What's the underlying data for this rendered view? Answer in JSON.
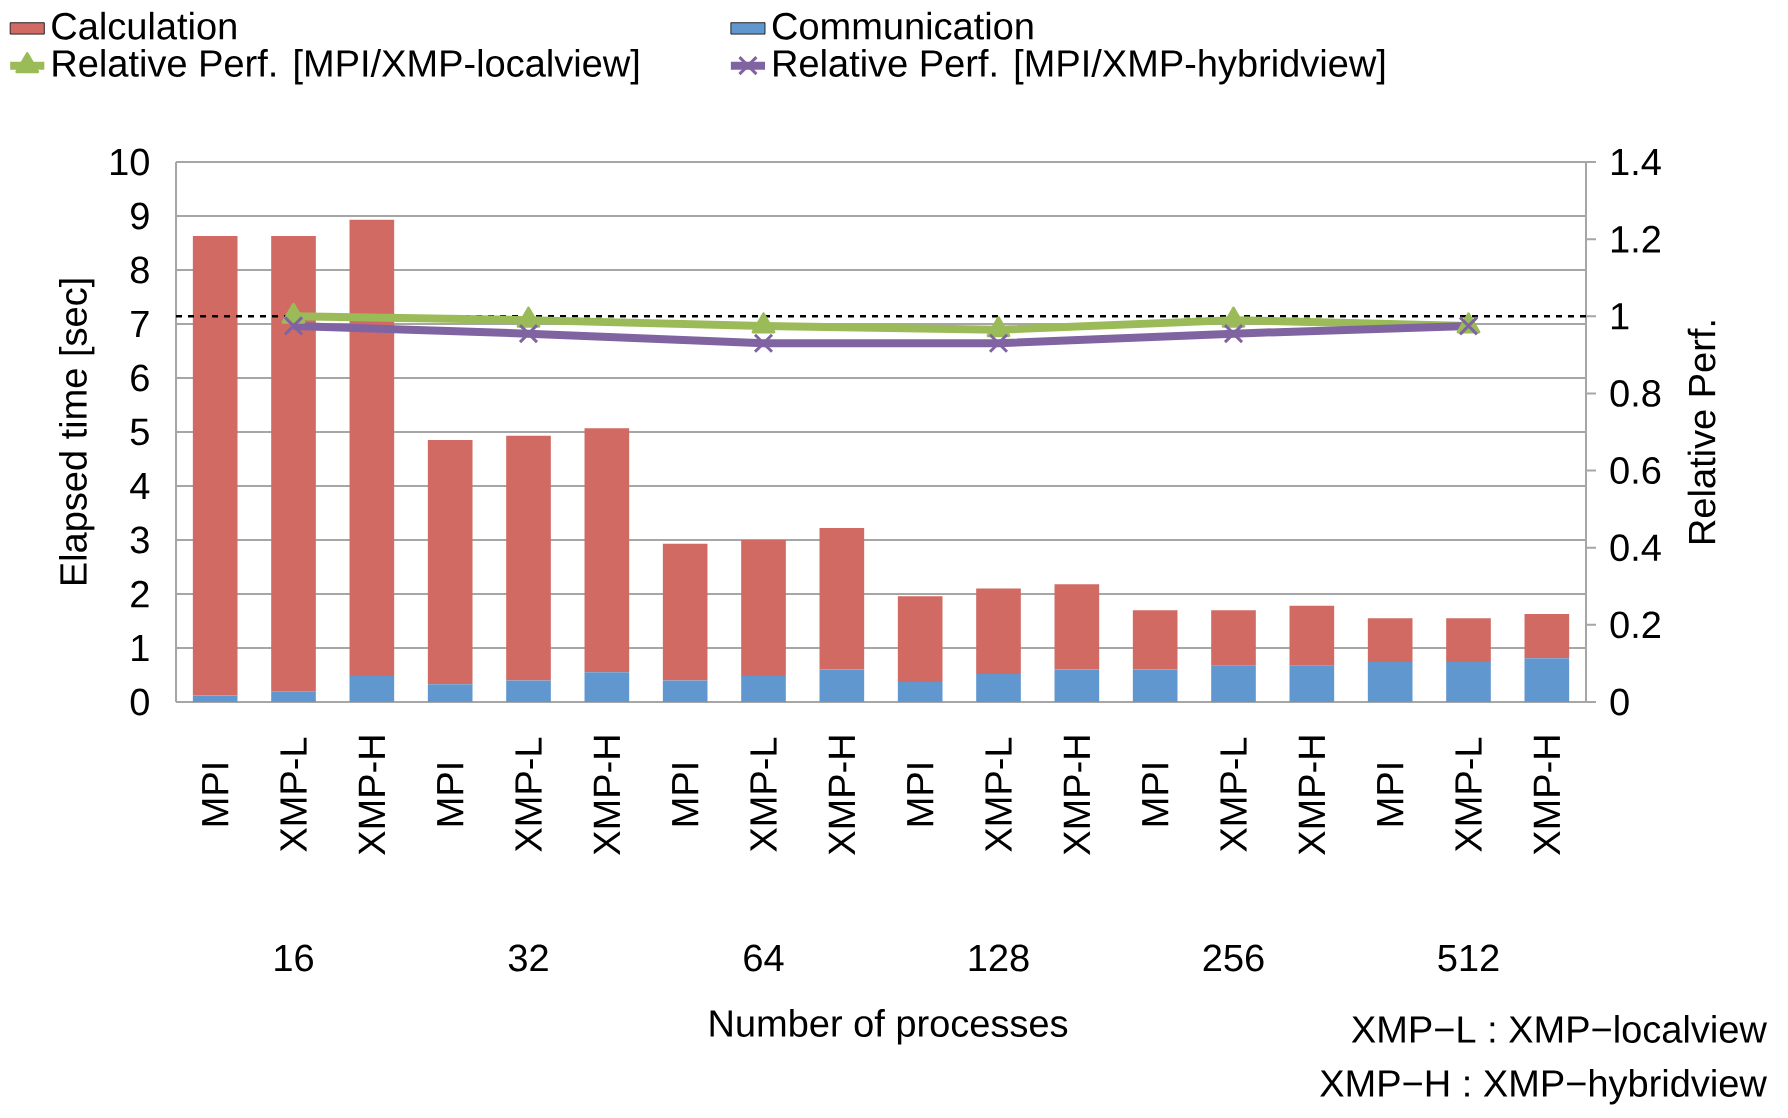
{
  "chart_data": {
    "type": "bar",
    "stacked": true,
    "categories": [
      "MPI",
      "XMP-L",
      "XMP-H",
      "MPI",
      "XMP-L",
      "XMP-H",
      "MPI",
      "XMP-L",
      "XMP-H",
      "MPI",
      "XMP-L",
      "XMP-H",
      "MPI",
      "XMP-L",
      "XMP-H",
      "MPI",
      "XMP-L",
      "XMP-H"
    ],
    "series": [
      {
        "name": "Communication",
        "color": "#6197cf",
        "values": [
          0.12,
          0.2,
          0.48,
          0.33,
          0.4,
          0.55,
          0.4,
          0.48,
          0.6,
          0.37,
          0.52,
          0.6,
          0.6,
          0.67,
          0.67,
          0.74,
          0.74,
          0.81
        ]
      },
      {
        "name": "Calculation",
        "color": "#d06a63",
        "values": [
          8.51,
          8.43,
          8.45,
          4.52,
          4.53,
          4.52,
          2.53,
          2.52,
          2.62,
          1.59,
          1.58,
          1.58,
          1.1,
          1.03,
          1.11,
          0.81,
          0.81,
          0.82
        ]
      },
      {
        "name": "Relative Perf. [MPI/XMP-localview]",
        "type": "line",
        "axis": "y2",
        "marker": "triangle",
        "color": "#9bbb59",
        "values": [
          null,
          1.0,
          null,
          null,
          0.99,
          null,
          null,
          0.975,
          null,
          null,
          0.965,
          null,
          null,
          0.99,
          null,
          null,
          0.975,
          null
        ]
      },
      {
        "name": "Relative Perf. [MPI/XMP-hybridview]",
        "type": "line",
        "axis": "y2",
        "marker": "cross",
        "color": "#8064a2",
        "values": [
          null,
          0.975,
          null,
          null,
          0.955,
          null,
          null,
          0.93,
          null,
          null,
          0.93,
          null,
          null,
          0.955,
          null,
          null,
          0.975,
          null
        ]
      }
    ],
    "ylim": [
      0,
      10
    ],
    "yticks": [
      0,
      1,
      2,
      3,
      4,
      5,
      6,
      7,
      8,
      9,
      10
    ],
    "y2lim": [
      0,
      1.4
    ],
    "y2ticks": [
      0,
      0.2,
      0.4,
      0.6,
      0.8,
      1,
      1.2,
      1.4
    ],
    "ylabel": "Elapsed time [sec]",
    "y2label": "Relative Perf.",
    "xlabel": "Number of processes",
    "ref_lines": [
      {
        "axis": "y2",
        "value": 1,
        "color": "#000000",
        "line_style": "dashed"
      }
    ],
    "annotations": [
      "16",
      "32",
      "64",
      "128",
      "256",
      "512",
      "XMP−L : XMP−localview",
      "XMP−H : XMP−hybridview"
    ],
    "grid": "y",
    "legend": "top"
  }
}
